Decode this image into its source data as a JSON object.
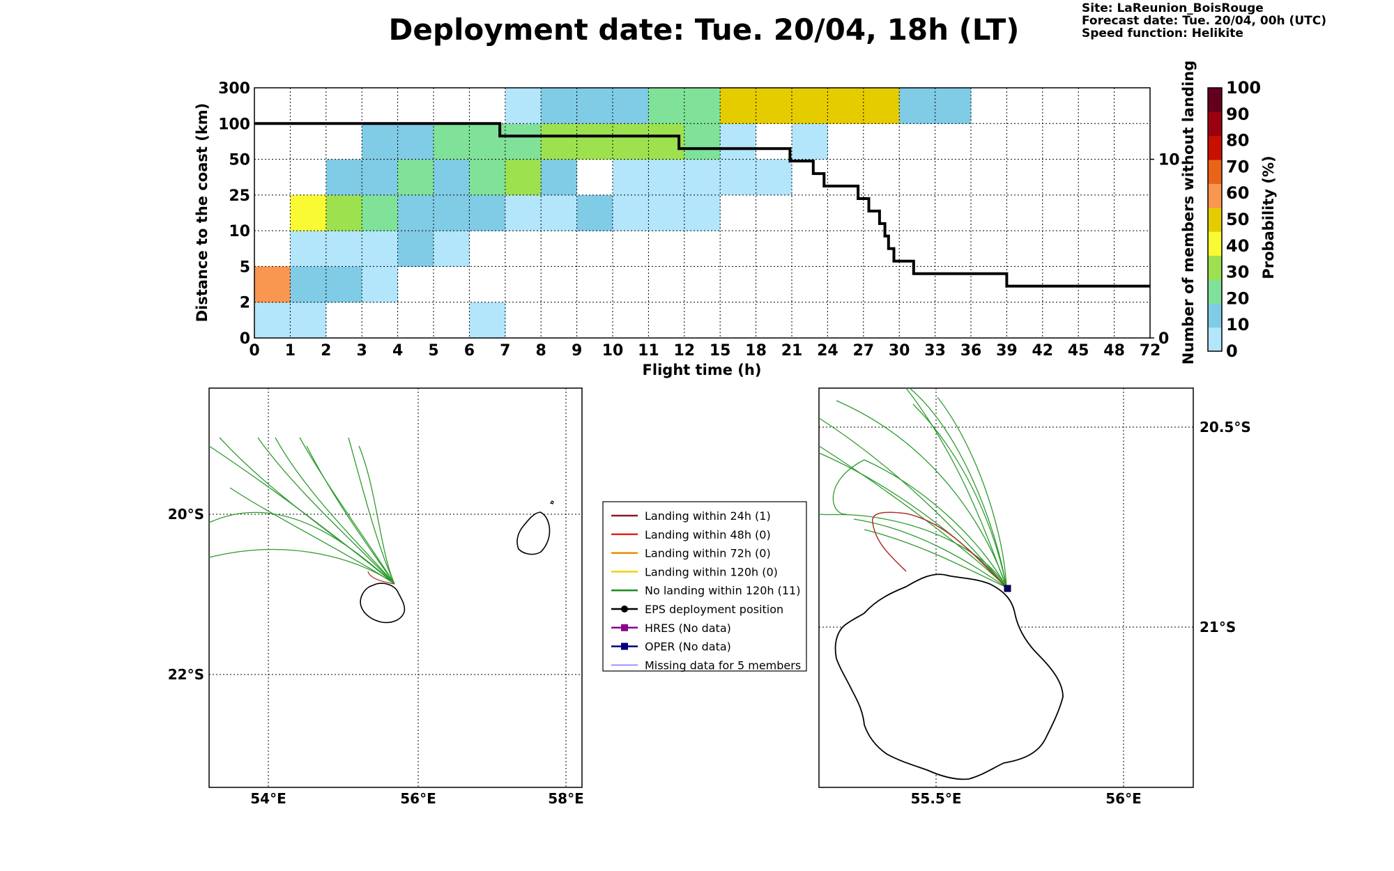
{
  "title": "Deployment date: Tue. 20/04, 18h (LT)",
  "info": {
    "site": "Site: LaReunion_BoisRouge",
    "forecast": "Forecast date: Tue. 20/04, 00h (UTC)",
    "speed": "Speed function: Helikite"
  },
  "chart_data": [
    {
      "type": "heatmap",
      "xlabel": "Flight time (h)",
      "ylabel": "Distance to the coast (km)",
      "y2label": "Number of members without landing",
      "colorbar_label": "Probability (%)",
      "x_ticks": [
        "0",
        "1",
        "2",
        "3",
        "4",
        "5",
        "6",
        "7",
        "8",
        "9",
        "10",
        "11",
        "12",
        "15",
        "18",
        "21",
        "24",
        "27",
        "30",
        "33",
        "36",
        "39",
        "42",
        "45",
        "48",
        "72"
      ],
      "y_ticks": [
        "0",
        "2",
        "5",
        "10",
        "25",
        "50",
        "100",
        "300"
      ],
      "y2_ticks": [
        "0",
        "10"
      ],
      "y2lim": [
        0,
        14
      ],
      "colorbar_ticks": [
        "0",
        "10",
        "20",
        "30",
        "40",
        "50",
        "60",
        "70",
        "80",
        "90",
        "100"
      ],
      "colorbar_colors": [
        "#b3e5fb",
        "#80cbe5",
        "#80e198",
        "#9de14e",
        "#f9fa34",
        "#e5cc00",
        "#f99650",
        "#ea6417",
        "#c80f00",
        "#9a0010",
        "#64001e"
      ],
      "grid": true,
      "cells_note_percent_bins": "value = probability bin lower bound (%)",
      "cells": [
        {
          "col": 0,
          "row": 0,
          "value": 0
        },
        {
          "col": 1,
          "row": 0,
          "value": 0
        },
        {
          "col": 6,
          "row": 0,
          "value": 0
        },
        {
          "col": 0,
          "row": 1,
          "value": 60
        },
        {
          "col": 1,
          "row": 1,
          "value": 10
        },
        {
          "col": 2,
          "row": 1,
          "value": 10
        },
        {
          "col": 3,
          "row": 1,
          "value": 0
        },
        {
          "col": 1,
          "row": 2,
          "value": 0
        },
        {
          "col": 2,
          "row": 2,
          "value": 0
        },
        {
          "col": 3,
          "row": 2,
          "value": 0
        },
        {
          "col": 4,
          "row": 2,
          "value": 10
        },
        {
          "col": 5,
          "row": 2,
          "value": 0
        },
        {
          "col": 1,
          "row": 3,
          "value": 40
        },
        {
          "col": 2,
          "row": 3,
          "value": 30
        },
        {
          "col": 3,
          "row": 3,
          "value": 20
        },
        {
          "col": 4,
          "row": 3,
          "value": 10
        },
        {
          "col": 5,
          "row": 3,
          "value": 10
        },
        {
          "col": 6,
          "row": 3,
          "value": 10
        },
        {
          "col": 7,
          "row": 3,
          "value": 0
        },
        {
          "col": 8,
          "row": 3,
          "value": 0
        },
        {
          "col": 9,
          "row": 3,
          "value": 10
        },
        {
          "col": 10,
          "row": 3,
          "value": 0
        },
        {
          "col": 11,
          "row": 3,
          "value": 0
        },
        {
          "col": 12,
          "row": 3,
          "value": 0
        },
        {
          "col": 2,
          "row": 4,
          "value": 10
        },
        {
          "col": 3,
          "row": 4,
          "value": 10
        },
        {
          "col": 4,
          "row": 4,
          "value": 20
        },
        {
          "col": 5,
          "row": 4,
          "value": 10
        },
        {
          "col": 6,
          "row": 4,
          "value": 20
        },
        {
          "col": 7,
          "row": 4,
          "value": 30
        },
        {
          "col": 8,
          "row": 4,
          "value": 10
        },
        {
          "col": 10,
          "row": 4,
          "value": 0
        },
        {
          "col": 11,
          "row": 4,
          "value": 0
        },
        {
          "col": 12,
          "row": 4,
          "value": 0
        },
        {
          "col": 13,
          "row": 4,
          "value": 0
        },
        {
          "col": 14,
          "row": 4,
          "value": 0
        },
        {
          "col": 3,
          "row": 5,
          "value": 10
        },
        {
          "col": 4,
          "row": 5,
          "value": 10
        },
        {
          "col": 5,
          "row": 5,
          "value": 20
        },
        {
          "col": 6,
          "row": 5,
          "value": 20
        },
        {
          "col": 7,
          "row": 5,
          "value": 20
        },
        {
          "col": 8,
          "row": 5,
          "value": 30
        },
        {
          "col": 9,
          "row": 5,
          "value": 30
        },
        {
          "col": 10,
          "row": 5,
          "value": 30
        },
        {
          "col": 11,
          "row": 5,
          "value": 30
        },
        {
          "col": 12,
          "row": 5,
          "value": 20
        },
        {
          "col": 13,
          "row": 5,
          "value": 0
        },
        {
          "col": 15,
          "row": 5,
          "value": 0
        },
        {
          "col": 7,
          "row": 6,
          "value": 0
        },
        {
          "col": 8,
          "row": 6,
          "value": 10
        },
        {
          "col": 9,
          "row": 6,
          "value": 10
        },
        {
          "col": 10,
          "row": 6,
          "value": 10
        },
        {
          "col": 11,
          "row": 6,
          "value": 20
        },
        {
          "col": 12,
          "row": 6,
          "value": 20
        },
        {
          "col": 13,
          "row": 6,
          "value": 50
        },
        {
          "col": 14,
          "row": 6,
          "value": 50
        },
        {
          "col": 15,
          "row": 6,
          "value": 50
        },
        {
          "col": 16,
          "row": 6,
          "value": 50
        },
        {
          "col": 17,
          "row": 6,
          "value": 50
        },
        {
          "col": 18,
          "row": 6,
          "value": 10
        },
        {
          "col": 19,
          "row": 6,
          "value": 10
        }
      ],
      "step_series": {
        "name": "members without landing",
        "points": [
          [
            0,
            12
          ],
          [
            6.85,
            12
          ],
          [
            6.85,
            11.3
          ],
          [
            11.85,
            11.3
          ],
          [
            11.85,
            10.6
          ],
          [
            14.95,
            10.6
          ],
          [
            14.95,
            9.9
          ],
          [
            15.6,
            9.9
          ],
          [
            15.6,
            9.2
          ],
          [
            15.9,
            9.2
          ],
          [
            15.9,
            8.5
          ],
          [
            16.85,
            8.5
          ],
          [
            16.85,
            7.8
          ],
          [
            17.15,
            7.8
          ],
          [
            17.15,
            7.1
          ],
          [
            17.45,
            7.1
          ],
          [
            17.45,
            6.4
          ],
          [
            17.6,
            6.4
          ],
          [
            17.6,
            5.7
          ],
          [
            17.7,
            5.7
          ],
          [
            17.7,
            5.0
          ],
          [
            17.85,
            5.0
          ],
          [
            17.85,
            4.3
          ],
          [
            18.4,
            4.3
          ],
          [
            18.4,
            3.6
          ],
          [
            21.0,
            3.6
          ],
          [
            21.0,
            2.9
          ],
          [
            25.0,
            2.9
          ]
        ]
      }
    }
  ],
  "map_left": {
    "lon_labels": [
      "54°E",
      "56°E",
      "58°E"
    ],
    "lat_labels": [
      "20°S",
      "22°S"
    ]
  },
  "map_right": {
    "lon_labels": [
      "55.5°E",
      "56°E"
    ],
    "lat_labels": [
      "20.5°S",
      "21°S"
    ]
  },
  "legend": {
    "items": [
      {
        "label": "Landing within 24h (1)",
        "color": "#8b1a1a",
        "kind": "line"
      },
      {
        "label": "Landing within 48h (0)",
        "color": "#e8231f",
        "kind": "line"
      },
      {
        "label": "Landing within 72h (0)",
        "color": "#f08a00",
        "kind": "line"
      },
      {
        "label": "Landing within 120h (0)",
        "color": "#f2d200",
        "kind": "line"
      },
      {
        "label": "No landing within 120h (11)",
        "color": "#1e8c1e",
        "kind": "line"
      },
      {
        "label": "EPS deployment position",
        "color": "#000000",
        "kind": "dot"
      },
      {
        "label": "HRES (No data)",
        "color": "#8b008b",
        "kind": "square"
      },
      {
        "label": "OPER (No data)",
        "color": "#00007f",
        "kind": "square"
      },
      {
        "label": "Missing data for 5 members",
        "color": "#4040ff",
        "kind": "thin"
      }
    ]
  }
}
